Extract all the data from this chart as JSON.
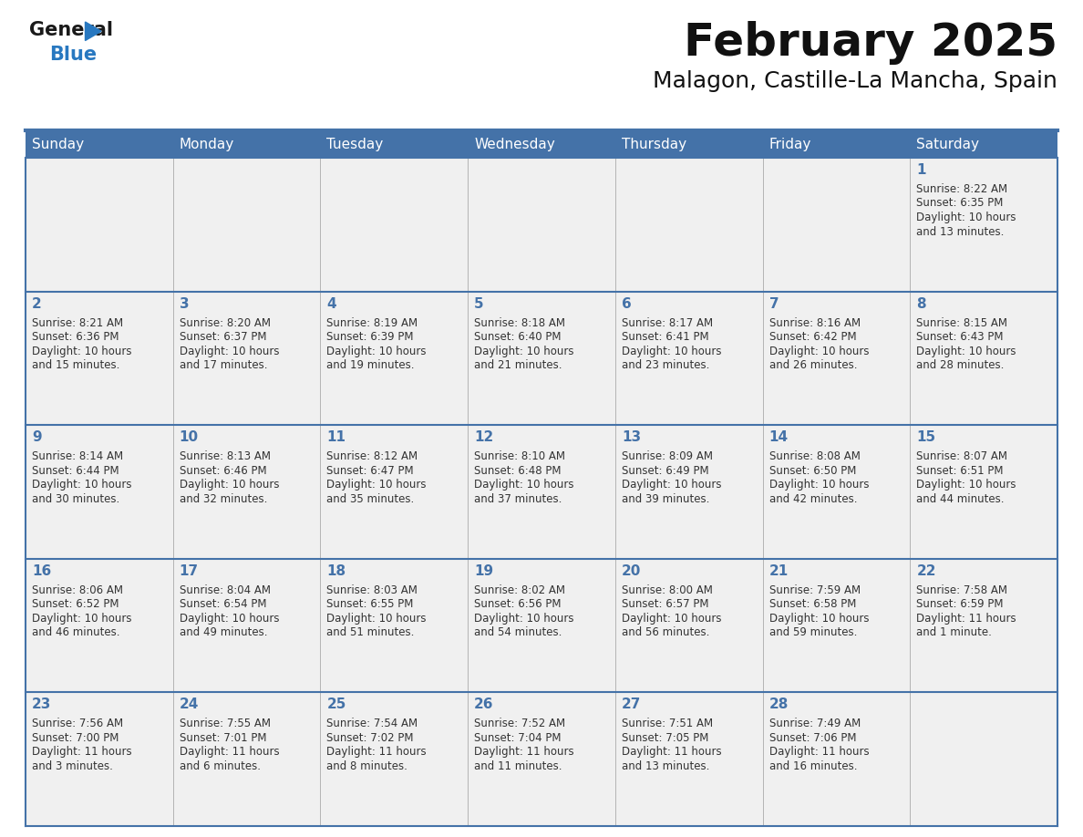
{
  "title": "February 2025",
  "subtitle": "Malagon, Castille-La Mancha, Spain",
  "header_bg": "#4472a8",
  "header_text_color": "#ffffff",
  "cell_bg": "#f0f0f0",
  "border_color": "#4472a8",
  "text_color": "#333333",
  "num_color": "#4472a8",
  "day_names": [
    "Sunday",
    "Monday",
    "Tuesday",
    "Wednesday",
    "Thursday",
    "Friday",
    "Saturday"
  ],
  "days": [
    {
      "day": 1,
      "col": 6,
      "row": 0,
      "sunrise": "8:22 AM",
      "sunset": "6:35 PM",
      "daylight": "10 hours",
      "daylight2": "and 13 minutes."
    },
    {
      "day": 2,
      "col": 0,
      "row": 1,
      "sunrise": "8:21 AM",
      "sunset": "6:36 PM",
      "daylight": "10 hours",
      "daylight2": "and 15 minutes."
    },
    {
      "day": 3,
      "col": 1,
      "row": 1,
      "sunrise": "8:20 AM",
      "sunset": "6:37 PM",
      "daylight": "10 hours",
      "daylight2": "and 17 minutes."
    },
    {
      "day": 4,
      "col": 2,
      "row": 1,
      "sunrise": "8:19 AM",
      "sunset": "6:39 PM",
      "daylight": "10 hours",
      "daylight2": "and 19 minutes."
    },
    {
      "day": 5,
      "col": 3,
      "row": 1,
      "sunrise": "8:18 AM",
      "sunset": "6:40 PM",
      "daylight": "10 hours",
      "daylight2": "and 21 minutes."
    },
    {
      "day": 6,
      "col": 4,
      "row": 1,
      "sunrise": "8:17 AM",
      "sunset": "6:41 PM",
      "daylight": "10 hours",
      "daylight2": "and 23 minutes."
    },
    {
      "day": 7,
      "col": 5,
      "row": 1,
      "sunrise": "8:16 AM",
      "sunset": "6:42 PM",
      "daylight": "10 hours",
      "daylight2": "and 26 minutes."
    },
    {
      "day": 8,
      "col": 6,
      "row": 1,
      "sunrise": "8:15 AM",
      "sunset": "6:43 PM",
      "daylight": "10 hours",
      "daylight2": "and 28 minutes."
    },
    {
      "day": 9,
      "col": 0,
      "row": 2,
      "sunrise": "8:14 AM",
      "sunset": "6:44 PM",
      "daylight": "10 hours",
      "daylight2": "and 30 minutes."
    },
    {
      "day": 10,
      "col": 1,
      "row": 2,
      "sunrise": "8:13 AM",
      "sunset": "6:46 PM",
      "daylight": "10 hours",
      "daylight2": "and 32 minutes."
    },
    {
      "day": 11,
      "col": 2,
      "row": 2,
      "sunrise": "8:12 AM",
      "sunset": "6:47 PM",
      "daylight": "10 hours",
      "daylight2": "and 35 minutes."
    },
    {
      "day": 12,
      "col": 3,
      "row": 2,
      "sunrise": "8:10 AM",
      "sunset": "6:48 PM",
      "daylight": "10 hours",
      "daylight2": "and 37 minutes."
    },
    {
      "day": 13,
      "col": 4,
      "row": 2,
      "sunrise": "8:09 AM",
      "sunset": "6:49 PM",
      "daylight": "10 hours",
      "daylight2": "and 39 minutes."
    },
    {
      "day": 14,
      "col": 5,
      "row": 2,
      "sunrise": "8:08 AM",
      "sunset": "6:50 PM",
      "daylight": "10 hours",
      "daylight2": "and 42 minutes."
    },
    {
      "day": 15,
      "col": 6,
      "row": 2,
      "sunrise": "8:07 AM",
      "sunset": "6:51 PM",
      "daylight": "10 hours",
      "daylight2": "and 44 minutes."
    },
    {
      "day": 16,
      "col": 0,
      "row": 3,
      "sunrise": "8:06 AM",
      "sunset": "6:52 PM",
      "daylight": "10 hours",
      "daylight2": "and 46 minutes."
    },
    {
      "day": 17,
      "col": 1,
      "row": 3,
      "sunrise": "8:04 AM",
      "sunset": "6:54 PM",
      "daylight": "10 hours",
      "daylight2": "and 49 minutes."
    },
    {
      "day": 18,
      "col": 2,
      "row": 3,
      "sunrise": "8:03 AM",
      "sunset": "6:55 PM",
      "daylight": "10 hours",
      "daylight2": "and 51 minutes."
    },
    {
      "day": 19,
      "col": 3,
      "row": 3,
      "sunrise": "8:02 AM",
      "sunset": "6:56 PM",
      "daylight": "10 hours",
      "daylight2": "and 54 minutes."
    },
    {
      "day": 20,
      "col": 4,
      "row": 3,
      "sunrise": "8:00 AM",
      "sunset": "6:57 PM",
      "daylight": "10 hours",
      "daylight2": "and 56 minutes."
    },
    {
      "day": 21,
      "col": 5,
      "row": 3,
      "sunrise": "7:59 AM",
      "sunset": "6:58 PM",
      "daylight": "10 hours",
      "daylight2": "and 59 minutes."
    },
    {
      "day": 22,
      "col": 6,
      "row": 3,
      "sunrise": "7:58 AM",
      "sunset": "6:59 PM",
      "daylight": "11 hours",
      "daylight2": "and 1 minute."
    },
    {
      "day": 23,
      "col": 0,
      "row": 4,
      "sunrise": "7:56 AM",
      "sunset": "7:00 PM",
      "daylight": "11 hours",
      "daylight2": "and 3 minutes."
    },
    {
      "day": 24,
      "col": 1,
      "row": 4,
      "sunrise": "7:55 AM",
      "sunset": "7:01 PM",
      "daylight": "11 hours",
      "daylight2": "and 6 minutes."
    },
    {
      "day": 25,
      "col": 2,
      "row": 4,
      "sunrise": "7:54 AM",
      "sunset": "7:02 PM",
      "daylight": "11 hours",
      "daylight2": "and 8 minutes."
    },
    {
      "day": 26,
      "col": 3,
      "row": 4,
      "sunrise": "7:52 AM",
      "sunset": "7:04 PM",
      "daylight": "11 hours",
      "daylight2": "and 11 minutes."
    },
    {
      "day": 27,
      "col": 4,
      "row": 4,
      "sunrise": "7:51 AM",
      "sunset": "7:05 PM",
      "daylight": "11 hours",
      "daylight2": "and 13 minutes."
    },
    {
      "day": 28,
      "col": 5,
      "row": 4,
      "sunrise": "7:49 AM",
      "sunset": "7:06 PM",
      "daylight": "11 hours",
      "daylight2": "and 16 minutes."
    }
  ],
  "num_rows": 5,
  "title_fontsize": 36,
  "subtitle_fontsize": 18,
  "dayname_fontsize": 11,
  "daynum_fontsize": 11,
  "info_fontsize": 8.5,
  "logo_general_color": "#1a1a1a",
  "logo_blue_color": "#2878c0",
  "logo_triangle_color": "#2878c0"
}
